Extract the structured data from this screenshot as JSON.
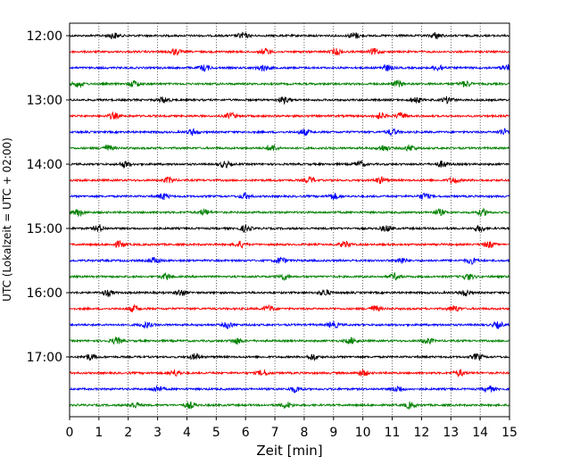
{
  "chart_data": {
    "type": "line",
    "title": "",
    "xlabel": "Zeit  [min]",
    "ylabel": "UTC (Lokalzeit = UTC + 02:00)",
    "xlim": [
      0,
      15
    ],
    "x_ticks": [
      0,
      1,
      2,
      3,
      4,
      5,
      6,
      7,
      8,
      9,
      10,
      11,
      12,
      13,
      14,
      15
    ],
    "x_tick_labels": [
      "0",
      "1",
      "2",
      "3",
      "4",
      "5",
      "6",
      "7",
      "8",
      "9",
      "10",
      "11",
      "12",
      "13",
      "14",
      "15"
    ],
    "y_tick_labels": [
      {
        "label": "12:00",
        "row": 0
      },
      {
        "label": "13:00",
        "row": 4
      },
      {
        "label": "14:00",
        "row": 8
      },
      {
        "label": "15:00",
        "row": 12
      },
      {
        "label": "16:00",
        "row": 16
      },
      {
        "label": "17:00",
        "row": 20
      }
    ],
    "grid": {
      "vertical": true,
      "style": "dotted"
    },
    "trace_colors": [
      "#000000",
      "#ff0000",
      "#0000ff",
      "#008000"
    ],
    "traces": [
      {
        "start": "12:00",
        "color": "#000000",
        "bursts": [
          1.5,
          5.9,
          9.7,
          12.5
        ]
      },
      {
        "start": "12:15",
        "color": "#ff0000",
        "bursts": [
          3.6,
          6.7,
          9.1,
          10.4
        ]
      },
      {
        "start": "12:30",
        "color": "#0000ff",
        "bursts": [
          4.6,
          6.6,
          10.8,
          12.6,
          14.9
        ]
      },
      {
        "start": "12:45",
        "color": "#008000",
        "bursts": [
          0.3,
          2.2,
          11.2,
          13.5
        ]
      },
      {
        "start": "13:00",
        "color": "#000000",
        "bursts": [
          3.2,
          7.3,
          11.8,
          12.9
        ]
      },
      {
        "start": "13:15",
        "color": "#ff0000",
        "bursts": [
          1.5,
          5.5,
          10.6,
          11.3
        ]
      },
      {
        "start": "13:30",
        "color": "#0000ff",
        "bursts": [
          4.2,
          8.0,
          11.0,
          14.8
        ]
      },
      {
        "start": "13:45",
        "color": "#008000",
        "bursts": [
          1.3,
          6.9,
          10.7,
          11.6
        ]
      },
      {
        "start": "14:00",
        "color": "#000000",
        "bursts": [
          1.9,
          5.3,
          9.9,
          12.7
        ]
      },
      {
        "start": "14:15",
        "color": "#ff0000",
        "bursts": [
          3.4,
          8.2,
          10.6,
          13.1
        ]
      },
      {
        "start": "14:30",
        "color": "#0000ff",
        "bursts": [
          3.2,
          6.0,
          9.0,
          12.1
        ]
      },
      {
        "start": "14:45",
        "color": "#008000",
        "bursts": [
          0.3,
          4.6,
          12.6,
          14.1
        ]
      },
      {
        "start": "15:00",
        "color": "#000000",
        "bursts": [
          1.0,
          6.0,
          10.8,
          14.0
        ]
      },
      {
        "start": "15:15",
        "color": "#ff0000",
        "bursts": [
          1.7,
          5.8,
          9.4,
          14.3
        ]
      },
      {
        "start": "15:30",
        "color": "#0000ff",
        "bursts": [
          2.9,
          7.2,
          11.3,
          13.7
        ]
      },
      {
        "start": "15:45",
        "color": "#008000",
        "bursts": [
          3.3,
          7.3,
          11.1,
          13.6
        ]
      },
      {
        "start": "16:00",
        "color": "#000000",
        "bursts": [
          1.3,
          3.8,
          8.7,
          13.5
        ]
      },
      {
        "start": "16:15",
        "color": "#ff0000",
        "bursts": [
          2.2,
          6.8,
          10.4,
          13.1
        ]
      },
      {
        "start": "16:30",
        "color": "#0000ff",
        "bursts": [
          2.6,
          5.4,
          9.0,
          14.6
        ]
      },
      {
        "start": "16:45",
        "color": "#008000",
        "bursts": [
          1.6,
          5.7,
          9.6,
          12.2
        ]
      },
      {
        "start": "17:00",
        "color": "#000000",
        "bursts": [
          0.7,
          4.3,
          8.3,
          13.9
        ]
      },
      {
        "start": "17:15",
        "color": "#ff0000",
        "bursts": [
          3.6,
          6.6,
          10.0,
          13.3
        ]
      },
      {
        "start": "17:30",
        "color": "#0000ff",
        "bursts": [
          3.0,
          7.7,
          11.2,
          14.3
        ]
      },
      {
        "start": "17:45",
        "color": "#008000",
        "bursts": [
          2.2,
          4.1,
          7.4,
          11.6
        ]
      }
    ]
  }
}
